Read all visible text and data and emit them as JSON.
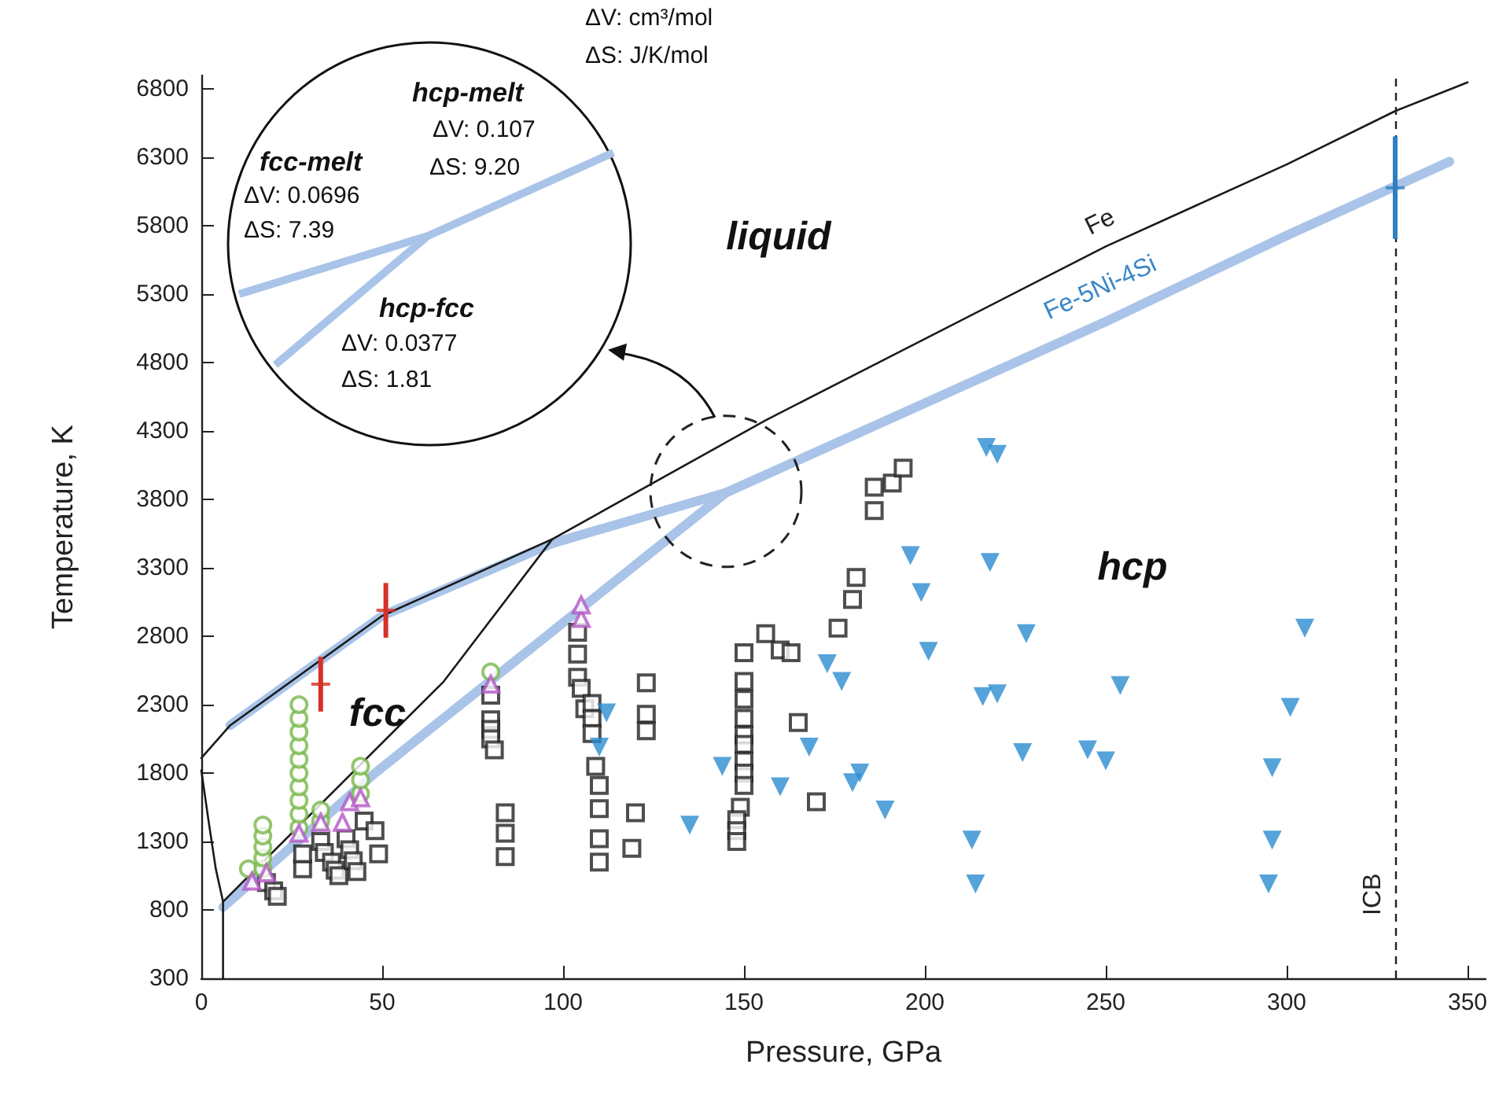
{
  "chart_data": {
    "type": "scatter",
    "xlabel": "Pressure, GPa",
    "ylabel": "Temperature, K",
    "xlim": [
      0,
      355
    ],
    "ylim": [
      300,
      6900
    ],
    "xticks": [
      0,
      50,
      100,
      150,
      200,
      250,
      300,
      350
    ],
    "yticks": [
      300,
      800,
      1300,
      1800,
      2300,
      2800,
      3300,
      3800,
      4300,
      4800,
      5300,
      5800,
      6300,
      6800
    ],
    "grid": false,
    "legend": false,
    "series": [
      {
        "type": "line",
        "name": "Fe-5Ni-4Si",
        "color": "#a9c4e8",
        "marker": "none",
        "x": [
          8,
          50,
          97,
          145,
          250,
          300,
          345
        ],
        "values": [
          2150,
          2950,
          3480,
          3850,
          5100,
          5730,
          6270
        ]
      },
      {
        "type": "line",
        "color": "#a9c4e8",
        "marker": "none",
        "x": [
          6,
          48,
          145
        ],
        "values": [
          820,
          1800,
          3850
        ]
      },
      {
        "type": "line",
        "name": "Fe",
        "color": "#1a1a1a",
        "marker": "none",
        "x": [
          0,
          8,
          50,
          97,
          156,
          250,
          300,
          330,
          350
        ],
        "values": [
          1910,
          2150,
          2950,
          3510,
          4380,
          5650,
          6250,
          6640,
          6850
        ]
      },
      {
        "type": "line",
        "color": "#1a1a1a",
        "marker": "none",
        "x": [
          0,
          2,
          4,
          6,
          6
        ],
        "values": [
          1820,
          1450,
          1100,
          860,
          300
        ]
      },
      {
        "type": "line",
        "color": "#1a1a1a",
        "marker": "none",
        "x": [
          6,
          67,
          97
        ],
        "values": [
          860,
          2470,
          3510
        ]
      },
      {
        "color": "#d73027",
        "marker": "cross",
        "x": [
          33,
          51
        ],
        "values": [
          2450,
          2990
        ],
        "errors": [
          200,
          200
        ]
      },
      {
        "color": "#2f7fc1",
        "marker": "cross",
        "x": [
          330
        ],
        "values": [
          6080
        ],
        "errors": [
          375
        ]
      },
      {
        "color": "#222222",
        "marker": "square",
        "x": [
          18,
          20,
          21,
          28,
          28,
          33,
          34,
          36,
          37,
          38,
          40,
          41,
          42,
          43,
          45,
          48,
          49,
          80,
          80,
          80,
          80,
          81,
          84,
          84,
          84,
          104,
          104,
          104,
          105,
          106,
          108,
          108,
          108,
          109,
          110,
          110,
          110,
          110,
          119,
          120,
          123,
          123,
          123,
          150,
          150,
          150,
          150,
          150,
          150,
          150,
          150,
          150,
          149,
          148,
          148,
          148,
          156,
          160,
          163,
          165,
          170,
          176,
          180,
          181,
          186,
          186,
          191,
          194
        ],
        "values": [
          1000,
          940,
          900,
          1100,
          1210,
          1300,
          1220,
          1150,
          1090,
          1050,
          1320,
          1240,
          1160,
          1080,
          1450,
          1380,
          1210,
          2370,
          2190,
          2120,
          2050,
          1970,
          1510,
          1360,
          1190,
          2830,
          2670,
          2500,
          2420,
          2270,
          2310,
          2200,
          2090,
          1850,
          1710,
          1540,
          1320,
          1150,
          1250,
          1510,
          2460,
          2230,
          2110,
          2680,
          2470,
          2340,
          2200,
          2080,
          2010,
          1890,
          1800,
          1710,
          1550,
          1460,
          1380,
          1300,
          2820,
          2700,
          2680,
          2170,
          1590,
          2860,
          3070,
          3230,
          3720,
          3890,
          3920,
          4030
        ]
      },
      {
        "color": "#78b84a",
        "marker": "circle",
        "x": [
          13,
          17,
          17,
          17,
          17,
          17,
          27,
          27,
          27,
          27,
          27,
          27,
          27,
          27,
          27,
          27,
          33,
          33,
          44,
          44,
          44,
          80
        ],
        "values": [
          1100,
          1100,
          1180,
          1260,
          1340,
          1420,
          1400,
          1500,
          1600,
          1700,
          1800,
          1900,
          2000,
          2100,
          2200,
          2300,
          1450,
          1530,
          1650,
          1750,
          1850,
          2540
        ]
      },
      {
        "color": "#b356c4",
        "marker": "triangle",
        "x": [
          14,
          18,
          27,
          33,
          39,
          41,
          44,
          80,
          105,
          105
        ],
        "values": [
          1010,
          1070,
          1360,
          1440,
          1440,
          1590,
          1620,
          2450,
          2930,
          3030
        ]
      },
      {
        "color": "#2b8cd0",
        "marker": "triangle-down",
        "x": [
          217,
          220,
          196,
          218,
          199,
          228,
          201,
          173,
          177,
          216,
          220,
          168,
          227,
          144,
          160,
          182,
          180,
          189,
          135,
          213,
          214,
          112,
          110,
          305,
          254,
          301,
          245,
          250,
          296,
          296,
          295
        ],
        "values": [
          4180,
          4130,
          3390,
          3340,
          3120,
          2820,
          2690,
          2600,
          2470,
          2360,
          2380,
          1990,
          1950,
          1850,
          1700,
          1800,
          1730,
          1530,
          1420,
          1310,
          990,
          2240,
          1990,
          2860,
          2440,
          2280,
          1970,
          1890,
          1840,
          1310,
          990
        ]
      }
    ],
    "ref_lines": [
      {
        "axis": "x",
        "value": 330,
        "label": "ICB",
        "line_style": "dashed",
        "color": "#222222"
      }
    ],
    "annotations": [
      "hcp-melt",
      "ΔV: 0.107",
      "ΔS: 9.20",
      "fcc-melt",
      "ΔV: 0.0696",
      "ΔS: 7.39",
      "hcp-fcc",
      "ΔV: 0.0377",
      "ΔS: 1.81",
      "ΔV: cm³/mol",
      "ΔS: J/K/mol",
      "liquid",
      "fcc",
      "hcp"
    ]
  }
}
